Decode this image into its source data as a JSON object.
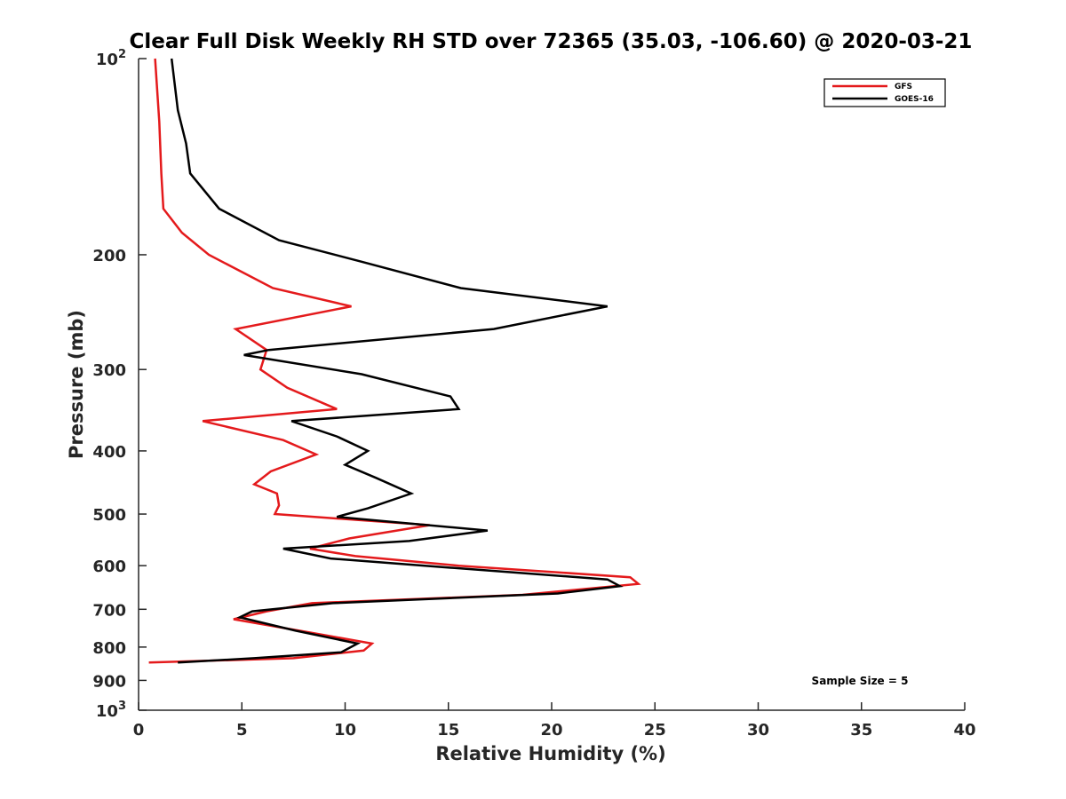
{
  "chart_data": {
    "type": "line",
    "title": "Clear Full Disk Weekly RH STD over 72365 (35.03, -106.60) @ 2020-03-21",
    "xlabel": "Relative Humidity (%)",
    "ylabel": "Pressure (mb)",
    "xlim": [
      0,
      40
    ],
    "ylim": [
      100,
      1000
    ],
    "yscale": "log",
    "y_reversed": true,
    "grid": false,
    "x_ticks": [
      0,
      5,
      10,
      15,
      20,
      25,
      30,
      35,
      40
    ],
    "x_tick_labels": [
      "0",
      "5",
      "10",
      "15",
      "20",
      "25",
      "30",
      "35",
      "40"
    ],
    "y_ticks": [
      100,
      200,
      300,
      400,
      500,
      600,
      700,
      800,
      900,
      1000
    ],
    "y_tick_labels": [
      {
        "base": "10",
        "exp": "2"
      },
      {
        "base": "200",
        "exp": ""
      },
      {
        "base": "300",
        "exp": ""
      },
      {
        "base": "400",
        "exp": ""
      },
      {
        "base": "500",
        "exp": ""
      },
      {
        "base": "600",
        "exp": ""
      },
      {
        "base": "700",
        "exp": ""
      },
      {
        "base": "800",
        "exp": ""
      },
      {
        "base": "900",
        "exp": ""
      },
      {
        "base": "10",
        "exp": "3"
      }
    ],
    "legend_position": "top-right",
    "annotation": "Sample Size = 5",
    "series": [
      {
        "name": "GFS",
        "color": "#e41a1c",
        "points": [
          [
            0.8,
            100
          ],
          [
            1.0,
            125
          ],
          [
            1.1,
            150
          ],
          [
            1.2,
            170
          ],
          [
            2.1,
            185
          ],
          [
            3.4,
            200
          ],
          [
            6.5,
            225
          ],
          [
            10.3,
            240
          ],
          [
            4.7,
            260
          ],
          [
            6.2,
            280
          ],
          [
            5.9,
            300
          ],
          [
            7.2,
            320
          ],
          [
            9.6,
            345
          ],
          [
            3.1,
            360
          ],
          [
            7.0,
            385
          ],
          [
            8.6,
            405
          ],
          [
            6.4,
            430
          ],
          [
            5.6,
            450
          ],
          [
            6.7,
            465
          ],
          [
            6.8,
            485
          ],
          [
            6.6,
            500
          ],
          [
            14.1,
            520
          ],
          [
            10.2,
            545
          ],
          [
            8.3,
            565
          ],
          [
            10.5,
            580
          ],
          [
            15.5,
            600
          ],
          [
            23.8,
            625
          ],
          [
            24.2,
            640
          ],
          [
            18.6,
            665
          ],
          [
            8.4,
            685
          ],
          [
            6.2,
            705
          ],
          [
            4.6,
            725
          ],
          [
            8.3,
            760
          ],
          [
            11.3,
            790
          ],
          [
            10.9,
            810
          ],
          [
            7.5,
            832
          ],
          [
            0.5,
            845
          ]
        ]
      },
      {
        "name": "GOES-16",
        "color": "#000000",
        "points": [
          [
            1.6,
            100
          ],
          [
            1.9,
            120
          ],
          [
            2.3,
            135
          ],
          [
            2.5,
            150
          ],
          [
            3.9,
            170
          ],
          [
            6.8,
            190
          ],
          [
            10.8,
            205
          ],
          [
            15.6,
            225
          ],
          [
            22.7,
            240
          ],
          [
            17.2,
            260
          ],
          [
            6.3,
            280
          ],
          [
            5.1,
            285
          ],
          [
            10.8,
            305
          ],
          [
            15.1,
            330
          ],
          [
            15.5,
            345
          ],
          [
            7.4,
            360
          ],
          [
            9.6,
            380
          ],
          [
            11.1,
            400
          ],
          [
            10.0,
            420
          ],
          [
            11.5,
            440
          ],
          [
            13.2,
            465
          ],
          [
            11.1,
            490
          ],
          [
            9.6,
            505
          ],
          [
            16.9,
            530
          ],
          [
            13.1,
            550
          ],
          [
            7.0,
            565
          ],
          [
            9.3,
            585
          ],
          [
            15.3,
            605
          ],
          [
            22.7,
            630
          ],
          [
            23.3,
            645
          ],
          [
            20.3,
            662
          ],
          [
            9.4,
            685
          ],
          [
            5.5,
            705
          ],
          [
            4.9,
            720
          ],
          [
            7.6,
            755
          ],
          [
            10.6,
            790
          ],
          [
            9.8,
            815
          ],
          [
            5.6,
            832
          ],
          [
            1.9,
            845
          ]
        ]
      }
    ]
  }
}
